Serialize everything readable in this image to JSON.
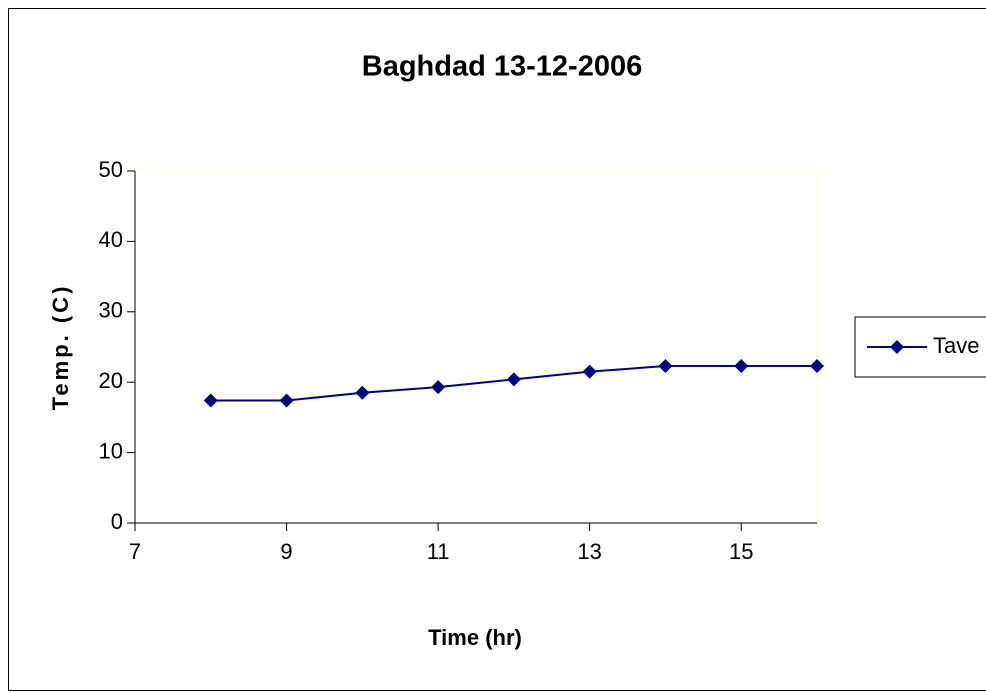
{
  "chart_data": {
    "type": "line",
    "title": "Baghdad 13-12-2006",
    "x_label": "Time (hr)",
    "y_label": "Temp. (C)",
    "x": [
      8,
      9,
      10,
      11,
      12,
      13,
      14,
      15,
      16
    ],
    "series": [
      {
        "name": "Tave",
        "color": "#000080",
        "values": [
          17.4,
          17.4,
          18.5,
          19.3,
          20.4,
          21.5,
          22.3,
          22.3,
          22.3
        ]
      }
    ],
    "xlim": [
      7,
      16
    ],
    "xticks": [
      7,
      9,
      11,
      13,
      15
    ],
    "ylim": [
      0,
      50
    ],
    "yticks": [
      0,
      10,
      20,
      30,
      40,
      50
    ],
    "grid": false,
    "legend": "right"
  }
}
